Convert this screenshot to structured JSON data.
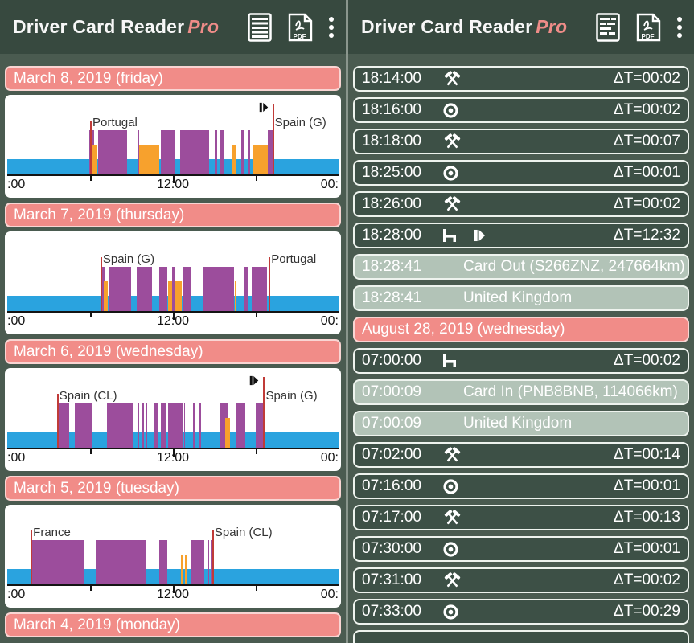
{
  "app": {
    "title": "Driver Card Reader",
    "title_pro": "Pro"
  },
  "icons": {
    "work": "crossed-hammers",
    "drive": "circle-dot",
    "rest": "bed",
    "card": "card-eject",
    "left_appbar_primary": "document-lines",
    "right_appbar_primary": "document-mini-charts",
    "appbar_pdf": "pdf-document",
    "appbar_menu": "vertical-ellipsis"
  },
  "colors": {
    "app_bar": "#37493F",
    "background": "#4A5B50",
    "row_dark": "#3D5046",
    "row_light": "#B2C3B7",
    "date_pink": "#F18C88",
    "driving_purple": "#9C4D9C",
    "work_orange": "#F7A12D",
    "rest_blue": "#2AA3DF",
    "marker_red": "#C03B38"
  },
  "left_screen": {
    "days": [
      {
        "label": "March 8, 2019 (friday)",
        "chart_index": 0
      },
      {
        "label": "March 7, 2019 (thursday)",
        "chart_index": 1
      },
      {
        "label": "March 6, 2019 (wednesday)",
        "chart_index": 2
      },
      {
        "label": "March 5, 2019 (tuesday)",
        "chart_index": 3
      },
      {
        "label": "March 4, 2019 (monday)",
        "chart_index": null
      }
    ]
  },
  "right_screen": {
    "rows": [
      {
        "type": "event",
        "time": "18:14:00",
        "icons": [
          "work"
        ],
        "delta": "ΔT=00:02"
      },
      {
        "type": "event",
        "time": "18:16:00",
        "icons": [
          "drive"
        ],
        "delta": "ΔT=00:02"
      },
      {
        "type": "event",
        "time": "18:18:00",
        "icons": [
          "work"
        ],
        "delta": "ΔT=00:07"
      },
      {
        "type": "event",
        "time": "18:25:00",
        "icons": [
          "drive"
        ],
        "delta": "ΔT=00:01"
      },
      {
        "type": "event",
        "time": "18:26:00",
        "icons": [
          "work"
        ],
        "delta": "ΔT=00:02"
      },
      {
        "type": "event",
        "time": "18:28:00",
        "icons": [
          "rest",
          "card"
        ],
        "delta": "ΔT=12:32"
      },
      {
        "type": "info",
        "time": "18:28:41",
        "text": "Card Out (S266ZNZ, 247664km)"
      },
      {
        "type": "info",
        "time": "18:28:41",
        "text": "United Kingdom"
      },
      {
        "type": "date",
        "label": "August 28, 2019 (wednesday)"
      },
      {
        "type": "event",
        "time": "07:00:00",
        "icons": [
          "rest"
        ],
        "delta": "ΔT=00:02"
      },
      {
        "type": "info",
        "time": "07:00:09",
        "text": "Card In (PNB8BNB, 114066km)"
      },
      {
        "type": "info",
        "time": "07:00:09",
        "text": "United Kingdom"
      },
      {
        "type": "event",
        "time": "07:02:00",
        "icons": [
          "work"
        ],
        "delta": "ΔT=00:14"
      },
      {
        "type": "event",
        "time": "07:16:00",
        "icons": [
          "drive"
        ],
        "delta": "ΔT=00:01"
      },
      {
        "type": "event",
        "time": "07:17:00",
        "icons": [
          "work"
        ],
        "delta": "ΔT=00:13"
      },
      {
        "type": "event",
        "time": "07:30:00",
        "icons": [
          "drive"
        ],
        "delta": "ΔT=00:01"
      },
      {
        "type": "event",
        "time": "07:31:00",
        "icons": [
          "work"
        ],
        "delta": "ΔT=00:02"
      },
      {
        "type": "event",
        "time": "07:33:00",
        "icons": [
          "drive"
        ],
        "delta": "ΔT=00:29"
      },
      {
        "type": "partial"
      }
    ]
  },
  "chart_data": [
    {
      "type": "bar",
      "subtype": "tachograph-daily-activity-timeline",
      "title": "March 8, 2019 (friday)",
      "x_range_hours": [
        0,
        24
      ],
      "x_tick_labels": [
        ":00",
        "12:00",
        "00:"
      ],
      "x_ticks_hours": [
        6,
        12,
        18
      ],
      "legend": {
        "drive": "driving (purple)",
        "work": "other work (orange)",
        "band": "rest/available (blue)"
      },
      "markers": [
        {
          "hour": 6.0,
          "label": "Portugal",
          "tall": false
        },
        {
          "hour": 19.2,
          "label": "Spain (G)",
          "tall": true
        }
      ],
      "card_symbol_hour": 19.2,
      "segments": [
        {
          "start": 5.95,
          "end": 6.3,
          "activity": "drive"
        },
        {
          "start": 6.2,
          "end": 6.55,
          "activity": "work"
        },
        {
          "start": 6.6,
          "end": 8.7,
          "activity": "drive"
        },
        {
          "start": 9.45,
          "end": 9.55,
          "activity": "drive"
        },
        {
          "start": 9.55,
          "end": 11.0,
          "activity": "work"
        },
        {
          "start": 11.1,
          "end": 12.2,
          "activity": "drive"
        },
        {
          "start": 12.5,
          "end": 14.6,
          "activity": "drive"
        },
        {
          "start": 15.05,
          "end": 15.2,
          "activity": "drive"
        },
        {
          "start": 15.35,
          "end": 15.75,
          "activity": "drive"
        },
        {
          "start": 16.25,
          "end": 16.55,
          "activity": "work"
        },
        {
          "start": 16.95,
          "end": 17.1,
          "activity": "drive"
        },
        {
          "start": 17.45,
          "end": 17.6,
          "activity": "drive"
        },
        {
          "start": 17.8,
          "end": 18.85,
          "activity": "work"
        },
        {
          "start": 18.85,
          "end": 19.2,
          "activity": "drive"
        }
      ]
    },
    {
      "type": "bar",
      "subtype": "tachograph-daily-activity-timeline",
      "title": "March 7, 2019 (thursday)",
      "x_range_hours": [
        0,
        24
      ],
      "x_tick_labels": [
        ":00",
        "12:00",
        "00:"
      ],
      "x_ticks_hours": [
        6,
        12,
        18
      ],
      "legend": {
        "drive": "driving (purple)",
        "work": "other work (orange)",
        "band": "rest/available (blue)"
      },
      "markers": [
        {
          "hour": 6.75,
          "label": "Spain (G)",
          "tall": false
        },
        {
          "hour": 18.95,
          "label": "Portugal",
          "tall": false
        }
      ],
      "card_symbol_hour": null,
      "segments": [
        {
          "start": 6.75,
          "end": 7.05,
          "activity": "drive"
        },
        {
          "start": 7.0,
          "end": 7.3,
          "activity": "work"
        },
        {
          "start": 7.35,
          "end": 8.95,
          "activity": "drive"
        },
        {
          "start": 9.35,
          "end": 10.5,
          "activity": "drive"
        },
        {
          "start": 11.0,
          "end": 11.6,
          "activity": "drive"
        },
        {
          "start": 11.65,
          "end": 12.65,
          "activity": "work"
        },
        {
          "start": 11.95,
          "end": 12.1,
          "activity": "drive"
        },
        {
          "start": 12.7,
          "end": 13.3,
          "activity": "drive"
        },
        {
          "start": 14.2,
          "end": 16.45,
          "activity": "drive"
        },
        {
          "start": 16.5,
          "end": 16.6,
          "activity": "work"
        },
        {
          "start": 17.1,
          "end": 17.2,
          "activity": "work"
        },
        {
          "start": 17.15,
          "end": 17.45,
          "activity": "drive"
        },
        {
          "start": 17.7,
          "end": 18.8,
          "activity": "drive"
        }
      ]
    },
    {
      "type": "bar",
      "subtype": "tachograph-daily-activity-timeline",
      "title": "March 6, 2019 (wednesday)",
      "x_range_hours": [
        0,
        24
      ],
      "x_tick_labels": [
        ":00",
        "12:00",
        "00:"
      ],
      "x_ticks_hours": [
        6,
        12,
        18
      ],
      "legend": {
        "drive": "driving (purple)",
        "work": "other work (orange)",
        "band": "rest/available (blue)"
      },
      "markers": [
        {
          "hour": 3.6,
          "label": "Spain (CL)",
          "tall": false
        },
        {
          "hour": 18.55,
          "label": "Spain (G)",
          "tall": true
        }
      ],
      "card_symbol_hour": 18.55,
      "segments": [
        {
          "start": 3.6,
          "end": 4.5,
          "activity": "drive"
        },
        {
          "start": 4.9,
          "end": 6.2,
          "activity": "drive"
        },
        {
          "start": 7.2,
          "end": 9.1,
          "activity": "drive"
        },
        {
          "start": 9.45,
          "end": 9.55,
          "activity": "drive"
        },
        {
          "start": 9.8,
          "end": 9.9,
          "activity": "drive"
        },
        {
          "start": 10.05,
          "end": 10.15,
          "activity": "drive"
        },
        {
          "start": 10.65,
          "end": 10.95,
          "activity": "drive"
        },
        {
          "start": 11.1,
          "end": 11.55,
          "activity": "drive"
        },
        {
          "start": 11.65,
          "end": 12.7,
          "activity": "drive"
        },
        {
          "start": 12.8,
          "end": 12.9,
          "activity": "drive"
        },
        {
          "start": 13.45,
          "end": 13.55,
          "activity": "drive"
        },
        {
          "start": 13.95,
          "end": 14.05,
          "activity": "drive"
        },
        {
          "start": 15.35,
          "end": 15.95,
          "activity": "drive"
        },
        {
          "start": 15.8,
          "end": 16.15,
          "activity": "work"
        },
        {
          "start": 16.6,
          "end": 17.25,
          "activity": "drive"
        },
        {
          "start": 18.0,
          "end": 18.5,
          "activity": "drive"
        }
      ]
    },
    {
      "type": "bar",
      "subtype": "tachograph-daily-activity-timeline",
      "title": "March 5, 2019 (tuesday)",
      "x_range_hours": [
        0,
        24
      ],
      "x_tick_labels": [
        ":00",
        "12:00",
        "00:"
      ],
      "x_ticks_hours": [
        6,
        12,
        18
      ],
      "legend": {
        "drive": "driving (purple)",
        "work": "other work (orange)",
        "band": "rest/available (blue)"
      },
      "markers": [
        {
          "hour": 1.7,
          "label": "France",
          "tall": false
        },
        {
          "hour": 14.85,
          "label": "Spain (CL)",
          "tall": false
        }
      ],
      "card_symbol_hour": null,
      "segments": [
        {
          "start": 1.7,
          "end": 5.6,
          "activity": "drive"
        },
        {
          "start": 6.4,
          "end": 10.1,
          "activity": "drive"
        },
        {
          "start": 11.0,
          "end": 11.6,
          "activity": "drive"
        },
        {
          "start": 12.6,
          "end": 12.7,
          "activity": "work"
        },
        {
          "start": 12.9,
          "end": 13.0,
          "activity": "work"
        },
        {
          "start": 13.3,
          "end": 14.3,
          "activity": "drive"
        },
        {
          "start": 14.55,
          "end": 14.62,
          "activity": "drive"
        },
        {
          "start": 14.78,
          "end": 14.85,
          "activity": "drive"
        }
      ]
    }
  ]
}
